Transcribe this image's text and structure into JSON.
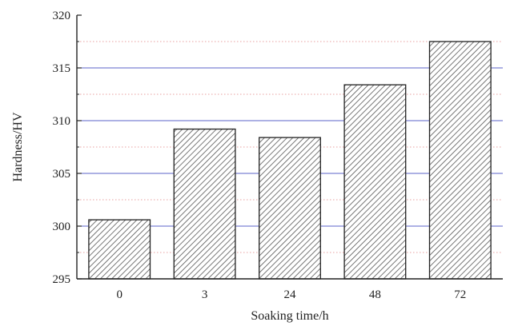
{
  "chart_data": {
    "type": "bar",
    "categories": [
      "0",
      "3",
      "24",
      "48",
      "72"
    ],
    "values": [
      300.6,
      309.2,
      308.4,
      313.4,
      317.5
    ],
    "title": "",
    "xlabel": "Soaking time/h",
    "ylabel": "Hardness/HV",
    "ylim": [
      295,
      320
    ],
    "yticks": [
      "295",
      "300",
      "305",
      "310",
      "315",
      "320"
    ],
    "grid": {
      "major": true,
      "minor": true,
      "major_color": "#5b63c9",
      "minor_color": "#e8a0a0"
    },
    "bar_fill": "hatched",
    "bar_stroke": "#222222",
    "legend": "none"
  }
}
